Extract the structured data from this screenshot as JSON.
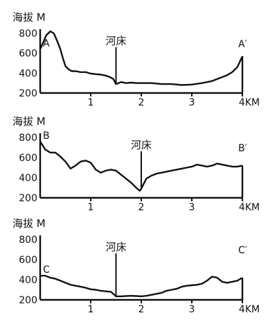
{
  "chart_data": [
    {
      "type": "line",
      "ylabel": "海拔 M",
      "xlabel": "",
      "x_unit": "4KM",
      "xlim": [
        0,
        4
      ],
      "ylim": [
        200,
        800
      ],
      "yticks": [
        200,
        400,
        600,
        800
      ],
      "xticks": [
        "1",
        "2",
        "3",
        "4KM"
      ],
      "start_label": "A",
      "end_label": "A′",
      "annotation": "河床",
      "annotation_x": 1.5,
      "series": [
        {
          "x": [
            0,
            0.07,
            0.12,
            0.2,
            0.27,
            0.33,
            0.4,
            0.45,
            0.5,
            0.56,
            0.62,
            0.7,
            0.8,
            0.9,
            1.0,
            1.1,
            1.2,
            1.3,
            1.38,
            1.45,
            1.5,
            1.55,
            1.6,
            1.7,
            1.8,
            1.9,
            2.0,
            2.2,
            2.4,
            2.6,
            2.8,
            3.0,
            3.2,
            3.4,
            3.5,
            3.6,
            3.7,
            3.8,
            3.9,
            4.0
          ],
          "y": [
            640,
            720,
            780,
            820,
            800,
            730,
            640,
            550,
            470,
            440,
            420,
            420,
            410,
            410,
            395,
            390,
            385,
            375,
            360,
            340,
            290,
            300,
            310,
            300,
            305,
            300,
            300,
            300,
            290,
            290,
            280,
            285,
            300,
            320,
            340,
            360,
            380,
            410,
            460,
            570
          ]
        }
      ]
    },
    {
      "type": "line",
      "ylabel": "海拔 M",
      "xlabel": "",
      "x_unit": "4KM",
      "xlim": [
        0,
        4
      ],
      "ylim": [
        200,
        800
      ],
      "yticks": [
        200,
        400,
        600,
        800
      ],
      "xticks": [
        "1",
        "2",
        "3",
        "4KM"
      ],
      "start_label": "B",
      "end_label": "B′",
      "annotation": "河床",
      "annotation_x": 2.0,
      "series": [
        {
          "x": [
            0,
            0.1,
            0.2,
            0.3,
            0.4,
            0.5,
            0.6,
            0.7,
            0.8,
            0.9,
            1.0,
            1.1,
            1.2,
            1.3,
            1.4,
            1.5,
            1.6,
            1.7,
            1.8,
            1.9,
            1.97,
            2.0,
            2.05,
            2.1,
            2.2,
            2.3,
            2.4,
            2.5,
            2.6,
            2.7,
            2.8,
            2.9,
            3.0,
            3.1,
            3.2,
            3.3,
            3.4,
            3.5,
            3.6,
            3.7,
            3.8,
            3.9,
            4.0
          ],
          "y": [
            760,
            680,
            650,
            650,
            610,
            560,
            490,
            520,
            560,
            570,
            550,
            480,
            450,
            470,
            480,
            470,
            430,
            390,
            350,
            300,
            270,
            290,
            340,
            390,
            420,
            440,
            450,
            460,
            470,
            480,
            490,
            500,
            510,
            530,
            520,
            510,
            520,
            540,
            530,
            520,
            510,
            510,
            520
          ]
        }
      ]
    },
    {
      "type": "line",
      "ylabel": "海拔 M",
      "xlabel": "",
      "x_unit": "4KM",
      "xlim": [
        0,
        4
      ],
      "ylim": [
        200,
        800
      ],
      "yticks": [
        200,
        400,
        600,
        800
      ],
      "xticks": [
        "1",
        "2",
        "3",
        "4KM"
      ],
      "start_label": "C",
      "end_label": "C′",
      "annotation": "河床",
      "annotation_x": 1.5,
      "series": [
        {
          "x": [
            0,
            0.1,
            0.2,
            0.3,
            0.4,
            0.5,
            0.6,
            0.7,
            0.8,
            0.9,
            1.0,
            1.1,
            1.2,
            1.3,
            1.4,
            1.5,
            1.6,
            1.7,
            1.8,
            1.9,
            2.0,
            2.1,
            2.2,
            2.3,
            2.4,
            2.5,
            2.6,
            2.7,
            2.8,
            2.9,
            3.0,
            3.1,
            3.2,
            3.3,
            3.4,
            3.5,
            3.6,
            3.7,
            3.8,
            3.9,
            4.0
          ],
          "y": [
            440,
            440,
            420,
            410,
            390,
            370,
            350,
            340,
            330,
            320,
            305,
            300,
            290,
            285,
            280,
            235,
            235,
            238,
            240,
            238,
            235,
            240,
            250,
            260,
            270,
            290,
            300,
            310,
            330,
            340,
            345,
            350,
            360,
            390,
            430,
            420,
            380,
            370,
            380,
            390,
            420
          ]
        }
      ]
    }
  ]
}
